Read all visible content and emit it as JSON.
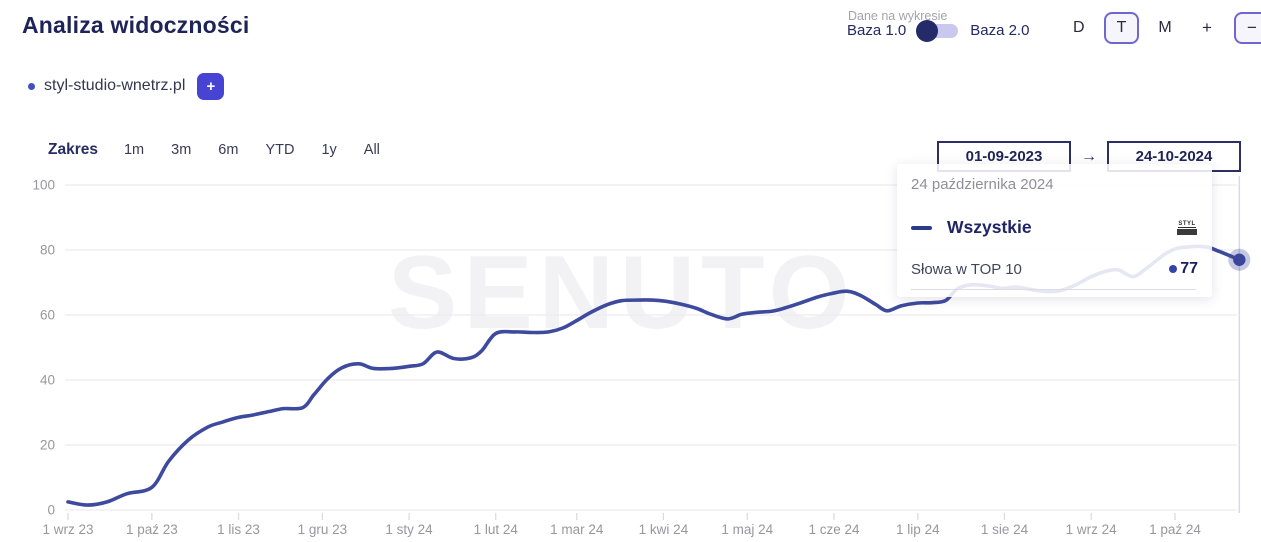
{
  "header": {
    "title": "Analiza widoczności"
  },
  "domain": {
    "name": "styl-studio-wnetrz.pl",
    "add_label": "+"
  },
  "controls": {
    "data_on_chart_label": "Dane na wykresie",
    "base1": "Baza 1.0",
    "base2": "Baza 2.0",
    "granularity": {
      "d": "D",
      "t": "T",
      "m": "M"
    },
    "zoom_in": "+",
    "zoom_out": "−"
  },
  "range": {
    "label": "Zakres",
    "options": [
      "1m",
      "3m",
      "6m",
      "YTD",
      "1y",
      "All"
    ]
  },
  "date_range": {
    "start": "01-09-2023",
    "arrow": "→",
    "end": "24-10-2024"
  },
  "tooltip": {
    "date": "24 października 2024",
    "series": "Wszystkie",
    "favicon": "STYL",
    "metric": "Słowa w TOP 10",
    "value": "77"
  },
  "watermark": "SENUTO",
  "colors": {
    "line": "#3e4a9d",
    "grid": "#ececf1",
    "axis_text": "#97979f",
    "tick": "#d9d9de",
    "crosshair": "#d8d8e8",
    "marker": "#3a459c",
    "marker_halo": "rgba(62,74,157,0.3)"
  },
  "chart_data": {
    "type": "line",
    "title": "Analiza widoczności",
    "x_unit": "days since 2023-09-01",
    "ylim": [
      0,
      100
    ],
    "yticks": [
      0,
      20,
      40,
      60,
      80,
      100
    ],
    "grid": "horizontal",
    "legend": "none",
    "x_ticks": [
      {
        "day": 0,
        "label": "1 wrz 23"
      },
      {
        "day": 30,
        "label": "1 paź 23"
      },
      {
        "day": 61,
        "label": "1 lis 23"
      },
      {
        "day": 91,
        "label": "1 gru 23"
      },
      {
        "day": 122,
        "label": "1 sty 24"
      },
      {
        "day": 153,
        "label": "1 lut 24"
      },
      {
        "day": 182,
        "label": "1 mar 24"
      },
      {
        "day": 213,
        "label": "1 kwi 24"
      },
      {
        "day": 243,
        "label": "1 maj 24"
      },
      {
        "day": 274,
        "label": "1 cze 24"
      },
      {
        "day": 304,
        "label": "1 lip 24"
      },
      {
        "day": 335,
        "label": "1 sie 24"
      },
      {
        "day": 366,
        "label": "1 wrz 24"
      },
      {
        "day": 396,
        "label": "1 paź 24"
      }
    ],
    "series": [
      {
        "name": "Wszystkie",
        "metric": "Słowa w TOP 10",
        "points": [
          [
            0,
            2.5
          ],
          [
            7,
            1.5
          ],
          [
            14,
            2.5
          ],
          [
            21,
            5
          ],
          [
            30,
            7
          ],
          [
            36,
            15
          ],
          [
            43,
            21.5
          ],
          [
            50,
            25.5
          ],
          [
            55,
            27
          ],
          [
            61,
            28.5
          ],
          [
            66,
            29.2
          ],
          [
            72,
            30.3
          ],
          [
            77,
            31.2
          ],
          [
            84,
            31.5
          ],
          [
            88,
            35.5
          ],
          [
            93,
            40.5
          ],
          [
            98,
            43.8
          ],
          [
            104,
            45
          ],
          [
            109,
            43.6
          ],
          [
            115,
            43.5
          ],
          [
            122,
            44.2
          ],
          [
            127,
            45
          ],
          [
            132,
            48.6
          ],
          [
            138,
            46.6
          ],
          [
            144,
            46.8
          ],
          [
            148,
            49
          ],
          [
            153,
            54.3
          ],
          [
            160,
            54.8
          ],
          [
            166,
            54.6
          ],
          [
            172,
            54.8
          ],
          [
            177,
            56
          ],
          [
            182,
            58.3
          ],
          [
            187,
            60.8
          ],
          [
            193,
            63.2
          ],
          [
            198,
            64.4
          ],
          [
            204,
            64.6
          ],
          [
            209,
            64.6
          ],
          [
            214,
            64.2
          ],
          [
            220,
            63.2
          ],
          [
            225,
            62
          ],
          [
            230,
            60.2
          ],
          [
            236,
            58.8
          ],
          [
            241,
            60.2
          ],
          [
            246,
            60.8
          ],
          [
            252,
            61.2
          ],
          [
            257,
            62.3
          ],
          [
            263,
            64
          ],
          [
            268,
            65.5
          ],
          [
            273,
            66.6
          ],
          [
            279,
            67.3
          ],
          [
            284,
            65.8
          ],
          [
            289,
            63.2
          ],
          [
            293,
            61.3
          ],
          [
            298,
            62.8
          ],
          [
            304,
            63.7
          ],
          [
            309,
            63.8
          ],
          [
            314,
            64.5
          ],
          [
            318,
            68
          ],
          [
            323,
            69.3
          ],
          [
            329,
            69
          ],
          [
            334,
            68.2
          ],
          [
            339,
            68.6
          ],
          [
            345,
            67.8
          ],
          [
            350,
            67.2
          ],
          [
            355,
            67.5
          ],
          [
            361,
            69.5
          ],
          [
            366,
            71.8
          ],
          [
            372,
            73.6
          ],
          [
            376,
            73.8
          ],
          [
            381,
            71.8
          ],
          [
            386,
            74.5
          ],
          [
            392,
            78.5
          ],
          [
            396,
            80.3
          ],
          [
            401,
            81
          ],
          [
            407,
            81
          ],
          [
            412,
            79.5
          ],
          [
            419,
            77
          ]
        ]
      }
    ],
    "end_marker": {
      "day": 419,
      "value": 77
    },
    "crosshair_day": 419
  }
}
